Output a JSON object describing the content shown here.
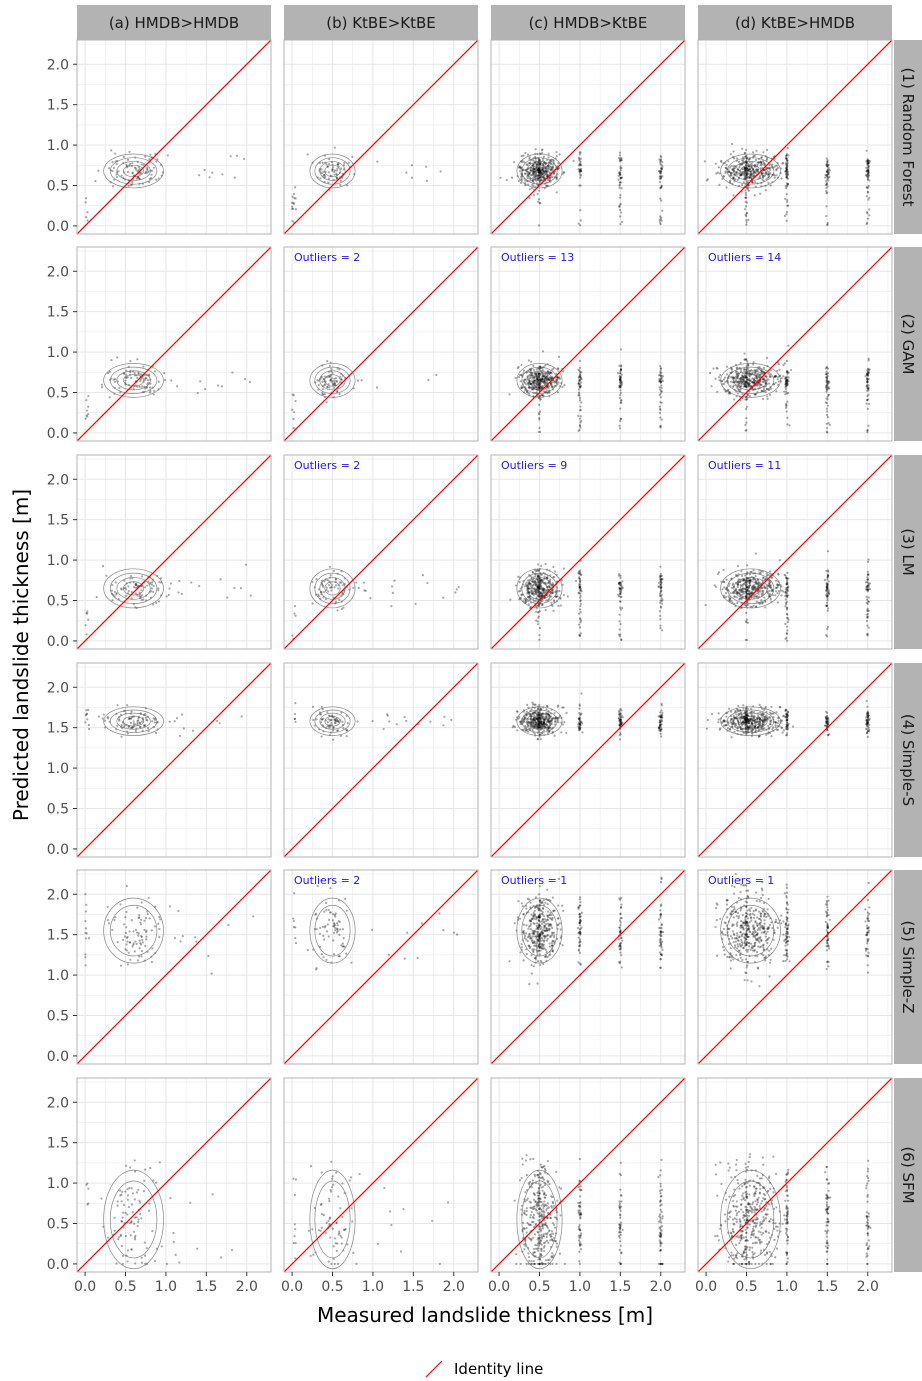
{
  "chart_data": {
    "type": "scatter",
    "layout": "facet-grid",
    "xlabel": "Measured landslide thickness [m]",
    "ylabel": "Predicted landslide thickness [m]",
    "xlim": [
      -0.1,
      2.3
    ],
    "ylim": [
      -0.1,
      2.3
    ],
    "x_ticks": [
      "0.0",
      "0.5",
      "1.0",
      "1.5",
      "2.0"
    ],
    "y_ticks": [
      "0.0",
      "0.5",
      "1.0",
      "1.5",
      "2.0"
    ],
    "grid": true,
    "columns": [
      "(a) HMDB>HMDB",
      "(b) KtBE>KtBE",
      "(c) HMDB>KtBE",
      "(d) KtBE>HMDB"
    ],
    "rows": [
      "(1) Random Forest",
      "(2) GAM",
      "(3) LM",
      "(4) Simple-S",
      "(5) Simple-Z",
      "(6) SFM"
    ],
    "outlier_labels": [
      {
        "row": 1,
        "col": 1,
        "text": "Outliers =  2"
      },
      {
        "row": 1,
        "col": 2,
        "text": "Outliers =  13"
      },
      {
        "row": 1,
        "col": 3,
        "text": "Outliers =  14"
      },
      {
        "row": 2,
        "col": 1,
        "text": "Outliers =  2"
      },
      {
        "row": 2,
        "col": 2,
        "text": "Outliers =  9"
      },
      {
        "row": 2,
        "col": 3,
        "text": "Outliers =  11"
      },
      {
        "row": 4,
        "col": 1,
        "text": "Outliers =  2"
      },
      {
        "row": 4,
        "col": 2,
        "text": "Outliers =  1"
      },
      {
        "row": 4,
        "col": 3,
        "text": "Outliers =  1"
      }
    ],
    "point_clusters": {
      "rows": [
        {
          "pred_center": 0.68,
          "pred_spread": 0.1
        },
        {
          "pred_center": 0.65,
          "pred_spread": 0.1
        },
        {
          "pred_center": 0.65,
          "pred_spread": 0.12
        },
        {
          "pred_center": 1.58,
          "pred_spread": 0.08
        },
        {
          "pred_center": 1.55,
          "pred_spread": 0.22
        },
        {
          "pred_center": 0.55,
          "pred_spread": 0.35
        }
      ],
      "cols": [
        {
          "meas_center": 0.6,
          "meas_spread": 0.3,
          "n": 110
        },
        {
          "meas_center": 0.5,
          "meas_spread": 0.2,
          "n": 90
        },
        {
          "meas_center": 0.5,
          "meas_spread": 0.2,
          "n": 520
        },
        {
          "meas_center": 0.55,
          "meas_spread": 0.3,
          "n": 560
        }
      ]
    },
    "legend": {
      "label": "Identity line",
      "placement": "bottom",
      "color": "#ff0000"
    },
    "colors": {
      "strip_bg": "#b3b3b3",
      "panel_border": "#b3b3b3",
      "grid": "#e6e6e6",
      "points": "#000000",
      "contour": "#666666",
      "identity": "#ff0000",
      "outlier_text": "#1a1ae6"
    }
  }
}
